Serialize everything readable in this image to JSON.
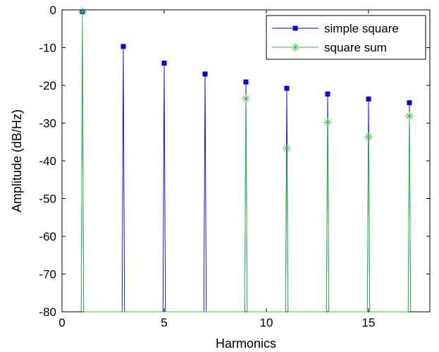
{
  "chart_data": {
    "type": "line",
    "title": "",
    "xlabel": "Harmonics",
    "ylabel": "Amplitude (dB/Hz)",
    "xlim": [
      0,
      18
    ],
    "ylim": [
      -80,
      0
    ],
    "xticks": [
      0,
      5,
      10,
      15
    ],
    "yticks": [
      0,
      -10,
      -20,
      -30,
      -40,
      -50,
      -60,
      -70,
      -80
    ],
    "grid": false,
    "legend_position": "top-right",
    "series": [
      {
        "name": "simple square",
        "color": "#0000ff",
        "marker": "square",
        "x": [
          1,
          3,
          5,
          7,
          9,
          11,
          13,
          15,
          17
        ],
        "y": [
          -0.5,
          -9.7,
          -14.1,
          -17.0,
          -19.1,
          -20.8,
          -22.3,
          -23.6,
          -24.6
        ]
      },
      {
        "name": "square sum",
        "color": "#33cc33",
        "marker": "asterisk",
        "x": [
          1,
          3,
          5,
          7,
          9,
          11,
          13,
          15,
          17
        ],
        "y": [
          -0.5,
          -80,
          -80,
          -80,
          -23.5,
          -36.7,
          -29.8,
          -33.6,
          -28.1
        ]
      }
    ]
  }
}
